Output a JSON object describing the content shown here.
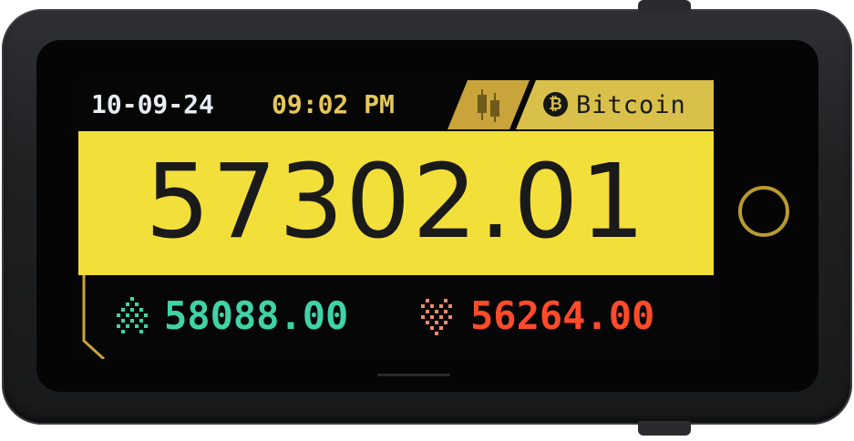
{
  "status_bar": {
    "date": "10-09-24",
    "time": "09:02 PM"
  },
  "coin": {
    "icon": "bitcoin-icon",
    "name": "Bitcoin"
  },
  "price": {
    "current": "57302.01",
    "high": "58088.00",
    "low": "56264.00"
  },
  "colors": {
    "price_panel": "#f3df3a",
    "accent_gold": "#c9a43a",
    "time_text": "#e6c85a",
    "high_text": "#3fd3a6",
    "low_text": "#ff4b2a",
    "date_text": "#e8ecf4"
  },
  "icons": {
    "chart_tab": "candlestick-chart-icon",
    "high": "up-arrow-icon",
    "low": "down-arrow-icon",
    "button": "ring-button-icon"
  }
}
